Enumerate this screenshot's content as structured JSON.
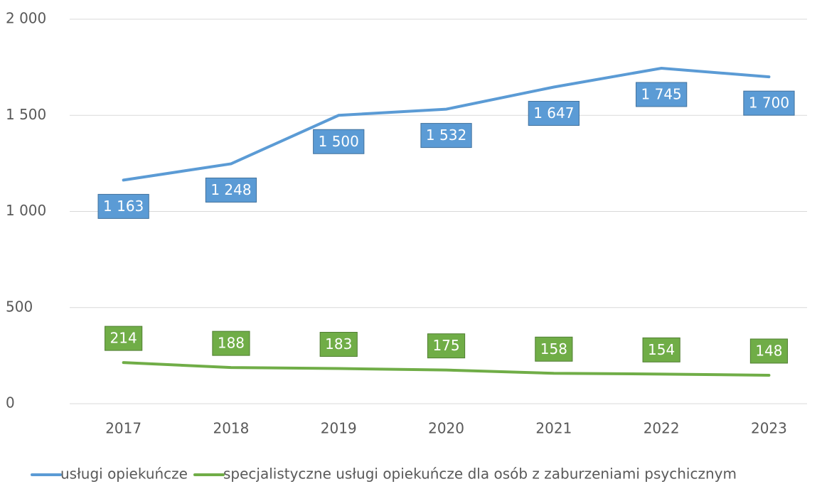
{
  "chart_data": {
    "type": "line",
    "categories": [
      "2017",
      "2018",
      "2019",
      "2020",
      "2021",
      "2022",
      "2023"
    ],
    "series": [
      {
        "name": "usługi opiekuńcze",
        "color": "#5b9bd5",
        "values": [
          1163,
          1248,
          1500,
          1532,
          1647,
          1745,
          1700
        ],
        "value_labels": [
          "1 163",
          "1 248",
          "1 500",
          "1 532",
          "1 647",
          "1 745",
          "1 700"
        ]
      },
      {
        "name": "specjalistyczne usługi opiekuńcze dla osób z zaburzeniami psychicznym",
        "color": "#70ad47",
        "values": [
          214,
          188,
          183,
          175,
          158,
          154,
          148
        ]
      }
    ],
    "ylim": [
      0,
      2000
    ],
    "yticks": [
      0,
      500,
      {
        "value": 1000,
        "label": "1 000"
      },
      {
        "value": 1500,
        "label": "1 500"
      },
      {
        "value": 2000,
        "label": "2 000"
      }
    ],
    "grid": true,
    "legend": "bottom"
  }
}
